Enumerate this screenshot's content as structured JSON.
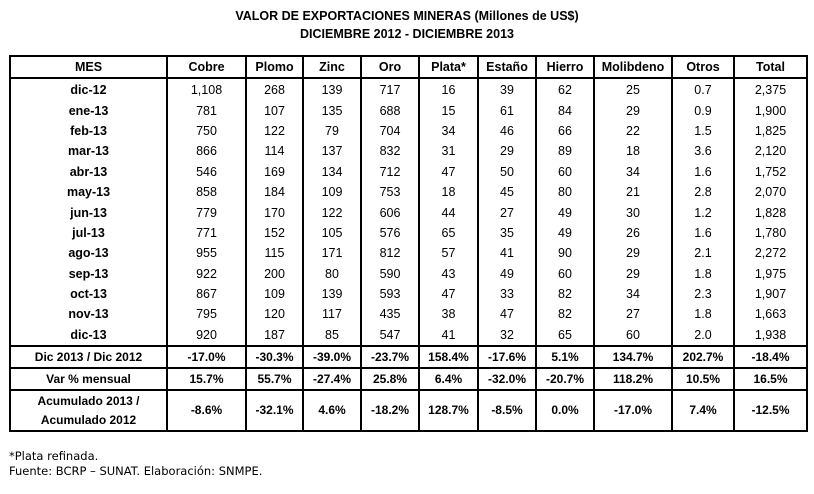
{
  "title": "VALOR DE EXPORTACIONES MINERAS (Millones de US$)",
  "subtitle": "DICIEMBRE 2012 - DICIEMBRE 2013",
  "columns": [
    "MES",
    "Cobre",
    "Plomo",
    "Zinc",
    "Oro",
    "Plata*",
    "Estaño",
    "Hierro",
    "Molibdeno",
    "Otros",
    "Total"
  ],
  "rows": [
    [
      "dic-12",
      "1,108",
      "268",
      "139",
      "717",
      "16",
      "39",
      "62",
      "25",
      "0.7",
      "2,375"
    ],
    [
      "ene-13",
      "781",
      "107",
      "135",
      "688",
      "15",
      "61",
      "84",
      "29",
      "0.9",
      "1,900"
    ],
    [
      "feb-13",
      "750",
      "122",
      "79",
      "704",
      "34",
      "46",
      "66",
      "22",
      "1.5",
      "1,825"
    ],
    [
      "mar-13",
      "866",
      "114",
      "137",
      "832",
      "31",
      "29",
      "89",
      "18",
      "3.6",
      "2,120"
    ],
    [
      "abr-13",
      "546",
      "169",
      "134",
      "712",
      "47",
      "50",
      "60",
      "34",
      "1.6",
      "1,752"
    ],
    [
      "may-13",
      "858",
      "184",
      "109",
      "753",
      "18",
      "45",
      "80",
      "21",
      "2.8",
      "2,070"
    ],
    [
      "jun-13",
      "779",
      "170",
      "122",
      "606",
      "44",
      "27",
      "49",
      "30",
      "1.2",
      "1,828"
    ],
    [
      "jul-13",
      "771",
      "152",
      "105",
      "576",
      "65",
      "35",
      "49",
      "26",
      "1.6",
      "1,780"
    ],
    [
      "ago-13",
      "955",
      "115",
      "171",
      "812",
      "57",
      "41",
      "90",
      "29",
      "2.1",
      "2,272"
    ],
    [
      "sep-13",
      "922",
      "200",
      "80",
      "590",
      "43",
      "49",
      "60",
      "29",
      "1.8",
      "1,975"
    ],
    [
      "oct-13",
      "867",
      "109",
      "139",
      "593",
      "47",
      "33",
      "82",
      "34",
      "2.3",
      "1,907"
    ],
    [
      "nov-13",
      "795",
      "120",
      "117",
      "435",
      "38",
      "47",
      "82",
      "27",
      "1.8",
      "1,663"
    ],
    [
      "dic-13",
      "920",
      "187",
      "85",
      "547",
      "41",
      "32",
      "65",
      "60",
      "2.0",
      "1,938"
    ]
  ],
  "summary": [
    [
      "Dic 2013 / Dic 2012",
      "-17.0%",
      "-30.3%",
      "-39.0%",
      "-23.7%",
      "158.4%",
      "-17.6%",
      "5.1%",
      "134.7%",
      "202.7%",
      "-18.4%"
    ],
    [
      "Var % mensual",
      "15.7%",
      "55.7%",
      "-27.4%",
      "25.8%",
      "6.4%",
      "-32.0%",
      "-20.7%",
      "118.2%",
      "10.5%",
      "16.5%"
    ],
    [
      "Acumulado 2013 / Acumulado 2012",
      "-8.6%",
      "-32.1%",
      "4.6%",
      "-18.2%",
      "128.7%",
      "-8.5%",
      "0.0%",
      "-17.0%",
      "7.4%",
      "-12.5%"
    ]
  ],
  "footnotes": [
    "*Plata refinada.",
    "Fuente: BCRP – SUNAT. Elaboración: SNMPE."
  ]
}
